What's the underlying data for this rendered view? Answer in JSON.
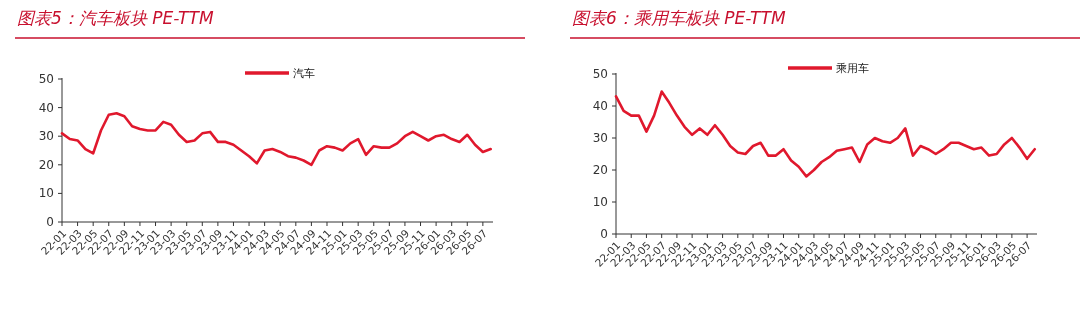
{
  "chart_data": [
    {
      "type": "line",
      "title": "图表5：汽车板块 PE-TTM",
      "categories": [
        "22-01",
        null,
        "22-03",
        null,
        "22-05",
        null,
        "22-07",
        null,
        "22-09",
        null,
        "22-11",
        null,
        "23-01",
        null,
        "23-03",
        null,
        "23-05",
        null,
        "23-07",
        null,
        "23-09",
        null,
        "23-11",
        null,
        "24-01",
        null,
        "24-03",
        null,
        "24-05",
        null,
        "24-07",
        null,
        "24-09",
        null,
        "24-11",
        null,
        "25-01",
        null,
        "25-03",
        null,
        "25-05",
        null,
        "25-07",
        null,
        "25-09",
        null,
        "25-11",
        null,
        "26-01",
        null,
        "26-03",
        null,
        "26-05",
        null,
        "26-07",
        null
      ],
      "series": [
        {
          "name": "汽车",
          "color": "#e0182d",
          "values": [
            31,
            29,
            28.5,
            25.5,
            24,
            32,
            37.5,
            38,
            37,
            33.5,
            32.5,
            32,
            32,
            35,
            34,
            30.5,
            28,
            28.5,
            31,
            31.5,
            28,
            28,
            27,
            25,
            23,
            20.5,
            25,
            25.5,
            24.5,
            23,
            22.5,
            21.5,
            20,
            25,
            26.5,
            26,
            25,
            27.5,
            29,
            23.5,
            26.5,
            26,
            26,
            27.5,
            30,
            31.5,
            30,
            28.5,
            30,
            30.5,
            29,
            28,
            30.5,
            27,
            24.5,
            25.5
          ]
        }
      ],
      "ylim": [
        0,
        50
      ],
      "yticks": [
        0,
        10,
        20,
        30,
        40,
        50
      ],
      "legend": "top",
      "marker": "none",
      "line_style": "solid"
    },
    {
      "type": "line",
      "title": "图表6：乘用车板块 PE-TTM",
      "categories": [
        "22-01",
        null,
        "22-03",
        null,
        "22-05",
        null,
        "22-07",
        null,
        "22-09",
        null,
        "22-11",
        null,
        "23-01",
        null,
        "23-03",
        null,
        "23-05",
        null,
        "23-07",
        null,
        "23-09",
        null,
        "23-11",
        null,
        "24-01",
        null,
        "24-03",
        null,
        "24-05",
        null,
        "24-07",
        null,
        "24-09",
        null,
        "24-11",
        null,
        "25-01",
        null,
        "25-03",
        null,
        "25-05",
        null,
        "25-07",
        null,
        "25-09",
        null,
        "25-11",
        null,
        "26-01",
        null,
        "26-03",
        null,
        "26-05",
        null,
        "26-07",
        null
      ],
      "series": [
        {
          "name": "乘用车",
          "color": "#e0182d",
          "values": [
            43,
            38.5,
            37,
            37,
            32,
            37,
            44.5,
            41,
            37,
            33.5,
            31,
            33,
            31,
            34,
            31,
            27.5,
            25.5,
            25,
            27.5,
            28.5,
            24.5,
            24.5,
            26.5,
            23,
            21,
            18,
            20,
            22.5,
            24,
            26,
            26.5,
            27,
            22.5,
            28,
            30,
            29,
            28.5,
            30,
            33,
            24.5,
            27.5,
            26.5,
            25,
            26.5,
            28.5,
            28.5,
            27.5,
            26.5,
            27,
            24.5,
            25,
            28,
            30,
            27,
            23.5,
            26.5
          ]
        }
      ],
      "ylim": [
        0,
        50
      ],
      "yticks": [
        0,
        10,
        20,
        30,
        40,
        50
      ],
      "legend": "top",
      "marker": "none",
      "line_style": "solid"
    }
  ]
}
